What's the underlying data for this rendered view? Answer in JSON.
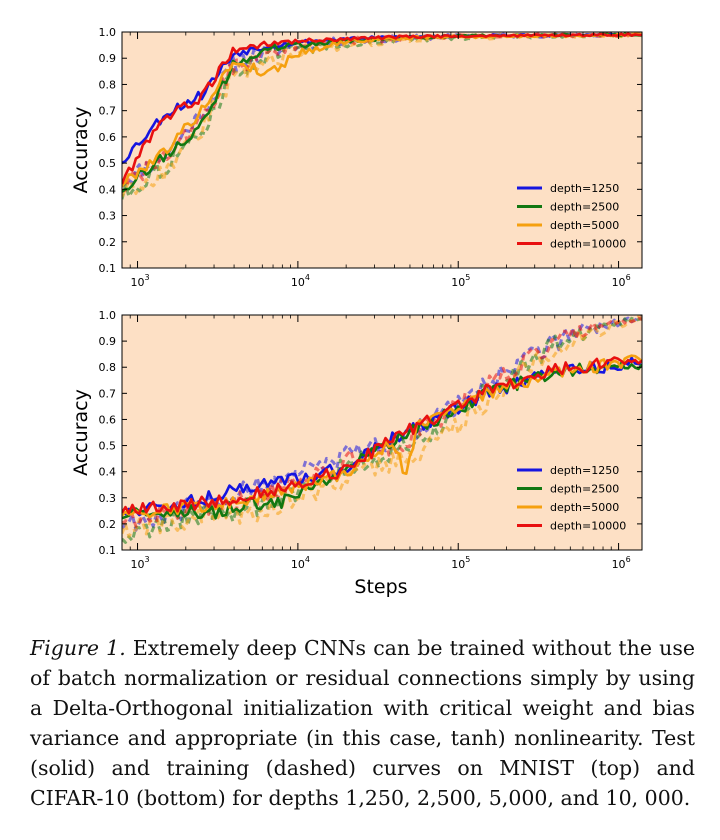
{
  "chart_data": [
    {
      "type": "line",
      "xscale": "log",
      "xlim": [
        800,
        1400000
      ],
      "ylim": [
        0.1,
        1.0
      ],
      "yticks": [
        0.1,
        0.2,
        0.3,
        0.4,
        0.5,
        0.6,
        0.7,
        0.8,
        0.9,
        1.0
      ],
      "ytick_labels": [
        "0.1",
        "0.2",
        "0.3",
        "0.4",
        "0.5",
        "0.6",
        "0.7",
        "0.8",
        "0.9",
        "1.0"
      ],
      "xticks": [
        1000,
        10000,
        100000,
        1000000
      ],
      "xtick_labels": [
        {
          "base": "10",
          "exp": "3"
        },
        {
          "base": "10",
          "exp": "4"
        },
        {
          "base": "10",
          "exp": "5"
        },
        {
          "base": "10",
          "exp": "6"
        }
      ],
      "ylabel": "Accuracy",
      "xlabel": "",
      "background": "#fde0c5",
      "legend_position": "lower-right",
      "series": [
        {
          "name": "depth=1250",
          "color": "#1515e0",
          "test": [
            [
              800,
              0.51
            ],
            [
              1500,
              0.69
            ],
            [
              2500,
              0.76
            ],
            [
              4000,
              0.92
            ],
            [
              7000,
              0.95
            ],
            [
              15000,
              0.97
            ],
            [
              40000,
              0.98
            ],
            [
              100000,
              0.985
            ],
            [
              1400000,
              0.99
            ]
          ],
          "train": [
            [
              800,
              0.43
            ],
            [
              1500,
              0.53
            ],
            [
              2500,
              0.69
            ],
            [
              4000,
              0.88
            ],
            [
              7000,
              0.93
            ],
            [
              15000,
              0.96
            ],
            [
              40000,
              0.975
            ],
            [
              100000,
              0.985
            ],
            [
              1400000,
              0.99
            ]
          ]
        },
        {
          "name": "depth=2500",
          "color": "#127812",
          "test": [
            [
              800,
              0.4
            ],
            [
              1500,
              0.53
            ],
            [
              2500,
              0.64
            ],
            [
              4000,
              0.88
            ],
            [
              7000,
              0.94
            ],
            [
              15000,
              0.96
            ],
            [
              40000,
              0.975
            ],
            [
              100000,
              0.985
            ],
            [
              1400000,
              0.99
            ]
          ],
          "train": [
            [
              800,
              0.38
            ],
            [
              1500,
              0.49
            ],
            [
              2500,
              0.61
            ],
            [
              4000,
              0.85
            ],
            [
              7000,
              0.92
            ],
            [
              15000,
              0.95
            ],
            [
              40000,
              0.97
            ],
            [
              100000,
              0.98
            ],
            [
              1400000,
              0.99
            ]
          ]
        },
        {
          "name": "depth=5000",
          "color": "#f5a00f",
          "test": [
            [
              800,
              0.42
            ],
            [
              1500,
              0.55
            ],
            [
              2500,
              0.7
            ],
            [
              4000,
              0.89
            ],
            [
              6500,
              0.84
            ],
            [
              10000,
              0.92
            ],
            [
              20000,
              0.965
            ],
            [
              60000,
              0.98
            ],
            [
              1400000,
              0.99
            ]
          ],
          "train": [
            [
              800,
              0.39
            ],
            [
              1500,
              0.47
            ],
            [
              2500,
              0.63
            ],
            [
              4000,
              0.84
            ],
            [
              7000,
              0.9
            ],
            [
              15000,
              0.94
            ],
            [
              40000,
              0.97
            ],
            [
              100000,
              0.98
            ],
            [
              1400000,
              0.99
            ]
          ]
        },
        {
          "name": "depth=10000",
          "color": "#e81010",
          "test": [
            [
              800,
              0.43
            ],
            [
              1500,
              0.68
            ],
            [
              2500,
              0.75
            ],
            [
              4000,
              0.93
            ],
            [
              7000,
              0.96
            ],
            [
              15000,
              0.97
            ],
            [
              40000,
              0.98
            ],
            [
              100000,
              0.985
            ],
            [
              1400000,
              0.99
            ]
          ],
          "train": [
            [
              800,
              0.41
            ],
            [
              1500,
              0.52
            ],
            [
              2500,
              0.66
            ],
            [
              4000,
              0.87
            ],
            [
              7000,
              0.93
            ],
            [
              15000,
              0.96
            ],
            [
              40000,
              0.975
            ],
            [
              100000,
              0.985
            ],
            [
              1400000,
              0.99
            ]
          ]
        }
      ]
    },
    {
      "type": "line",
      "xscale": "log",
      "xlim": [
        800,
        1400000
      ],
      "ylim": [
        0.1,
        1.0
      ],
      "yticks": [
        0.1,
        0.2,
        0.3,
        0.4,
        0.5,
        0.6,
        0.7,
        0.8,
        0.9,
        1.0
      ],
      "ytick_labels": [
        "0.1",
        "0.2",
        "0.3",
        "0.4",
        "0.5",
        "0.6",
        "0.7",
        "0.8",
        "0.9",
        "1.0"
      ],
      "xticks": [
        1000,
        10000,
        100000,
        1000000
      ],
      "xtick_labels": [
        {
          "base": "10",
          "exp": "3"
        },
        {
          "base": "10",
          "exp": "4"
        },
        {
          "base": "10",
          "exp": "5"
        },
        {
          "base": "10",
          "exp": "6"
        }
      ],
      "ylabel": "Accuracy",
      "xlabel": "Steps",
      "background": "#fde0c5",
      "legend_position": "lower-right",
      "series": [
        {
          "name": "depth=1250",
          "color": "#1515e0",
          "test": [
            [
              800,
              0.25
            ],
            [
              2000,
              0.28
            ],
            [
              3000,
              0.31
            ],
            [
              5000,
              0.34
            ],
            [
              8000,
              0.36
            ],
            [
              12000,
              0.38
            ],
            [
              20000,
              0.42
            ],
            [
              40000,
              0.53
            ],
            [
              70000,
              0.6
            ],
            [
              150000,
              0.7
            ],
            [
              400000,
              0.78
            ],
            [
              1400000,
              0.82
            ]
          ],
          "train": [
            [
              800,
              0.2
            ],
            [
              2000,
              0.26
            ],
            [
              5000,
              0.33
            ],
            [
              10000,
              0.39
            ],
            [
              20000,
              0.46
            ],
            [
              50000,
              0.55
            ],
            [
              100000,
              0.66
            ],
            [
              200000,
              0.79
            ],
            [
              500000,
              0.93
            ],
            [
              1400000,
              0.99
            ]
          ]
        },
        {
          "name": "depth=2500",
          "color": "#127812",
          "test": [
            [
              800,
              0.23
            ],
            [
              2000,
              0.25
            ],
            [
              3000,
              0.24
            ],
            [
              5000,
              0.28
            ],
            [
              7000,
              0.27
            ],
            [
              12000,
              0.33
            ],
            [
              20000,
              0.41
            ],
            [
              40000,
              0.52
            ],
            [
              70000,
              0.59
            ],
            [
              150000,
              0.7
            ],
            [
              400000,
              0.78
            ],
            [
              1400000,
              0.82
            ]
          ],
          "train": [
            [
              800,
              0.16
            ],
            [
              2000,
              0.22
            ],
            [
              5000,
              0.26
            ],
            [
              10000,
              0.33
            ],
            [
              20000,
              0.42
            ],
            [
              50000,
              0.5
            ],
            [
              100000,
              0.63
            ],
            [
              200000,
              0.76
            ],
            [
              500000,
              0.92
            ],
            [
              1400000,
              0.99
            ]
          ]
        },
        {
          "name": "depth=5000",
          "color": "#f5a00f",
          "test": [
            [
              800,
              0.24
            ],
            [
              2000,
              0.26
            ],
            [
              5000,
              0.3
            ],
            [
              10000,
              0.34
            ],
            [
              20000,
              0.4
            ],
            [
              40000,
              0.52
            ],
            [
              47000,
              0.36
            ],
            [
              55000,
              0.58
            ],
            [
              100000,
              0.65
            ],
            [
              200000,
              0.73
            ],
            [
              500000,
              0.79
            ],
            [
              1400000,
              0.83
            ]
          ],
          "train": [
            [
              800,
              0.18
            ],
            [
              2000,
              0.22
            ],
            [
              5000,
              0.24
            ],
            [
              10000,
              0.3
            ],
            [
              20000,
              0.38
            ],
            [
              50000,
              0.46
            ],
            [
              100000,
              0.58
            ],
            [
              200000,
              0.74
            ],
            [
              500000,
              0.91
            ],
            [
              1400000,
              0.99
            ]
          ]
        },
        {
          "name": "depth=10000",
          "color": "#e81010",
          "test": [
            [
              800,
              0.25
            ],
            [
              2000,
              0.27
            ],
            [
              5000,
              0.31
            ],
            [
              10000,
              0.35
            ],
            [
              20000,
              0.41
            ],
            [
              40000,
              0.53
            ],
            [
              70000,
              0.6
            ],
            [
              150000,
              0.71
            ],
            [
              400000,
              0.79
            ],
            [
              1400000,
              0.83
            ]
          ],
          "train": [
            [
              800,
              0.22
            ],
            [
              2000,
              0.26
            ],
            [
              5000,
              0.3
            ],
            [
              10000,
              0.36
            ],
            [
              20000,
              0.44
            ],
            [
              50000,
              0.53
            ],
            [
              100000,
              0.65
            ],
            [
              200000,
              0.78
            ],
            [
              500000,
              0.93
            ],
            [
              1400000,
              0.99
            ]
          ]
        }
      ]
    }
  ],
  "caption": {
    "lead": "Figure 1.",
    "text_1": " Extremely deep CNNs can be trained without the use of batch normalization or residual connections simply by using a Delta-Orthogonal initialization with critical weight and bias variance and appropriate (in this case, ",
    "tanh": "tanh",
    "text_2": ") nonlinearity.  Test (solid) and training (dashed) curves on MNIST (top) and CIFAR-10 (bottom) for depths ",
    "depths": "1,250, 2,500, 5,000, and 10, 000."
  }
}
